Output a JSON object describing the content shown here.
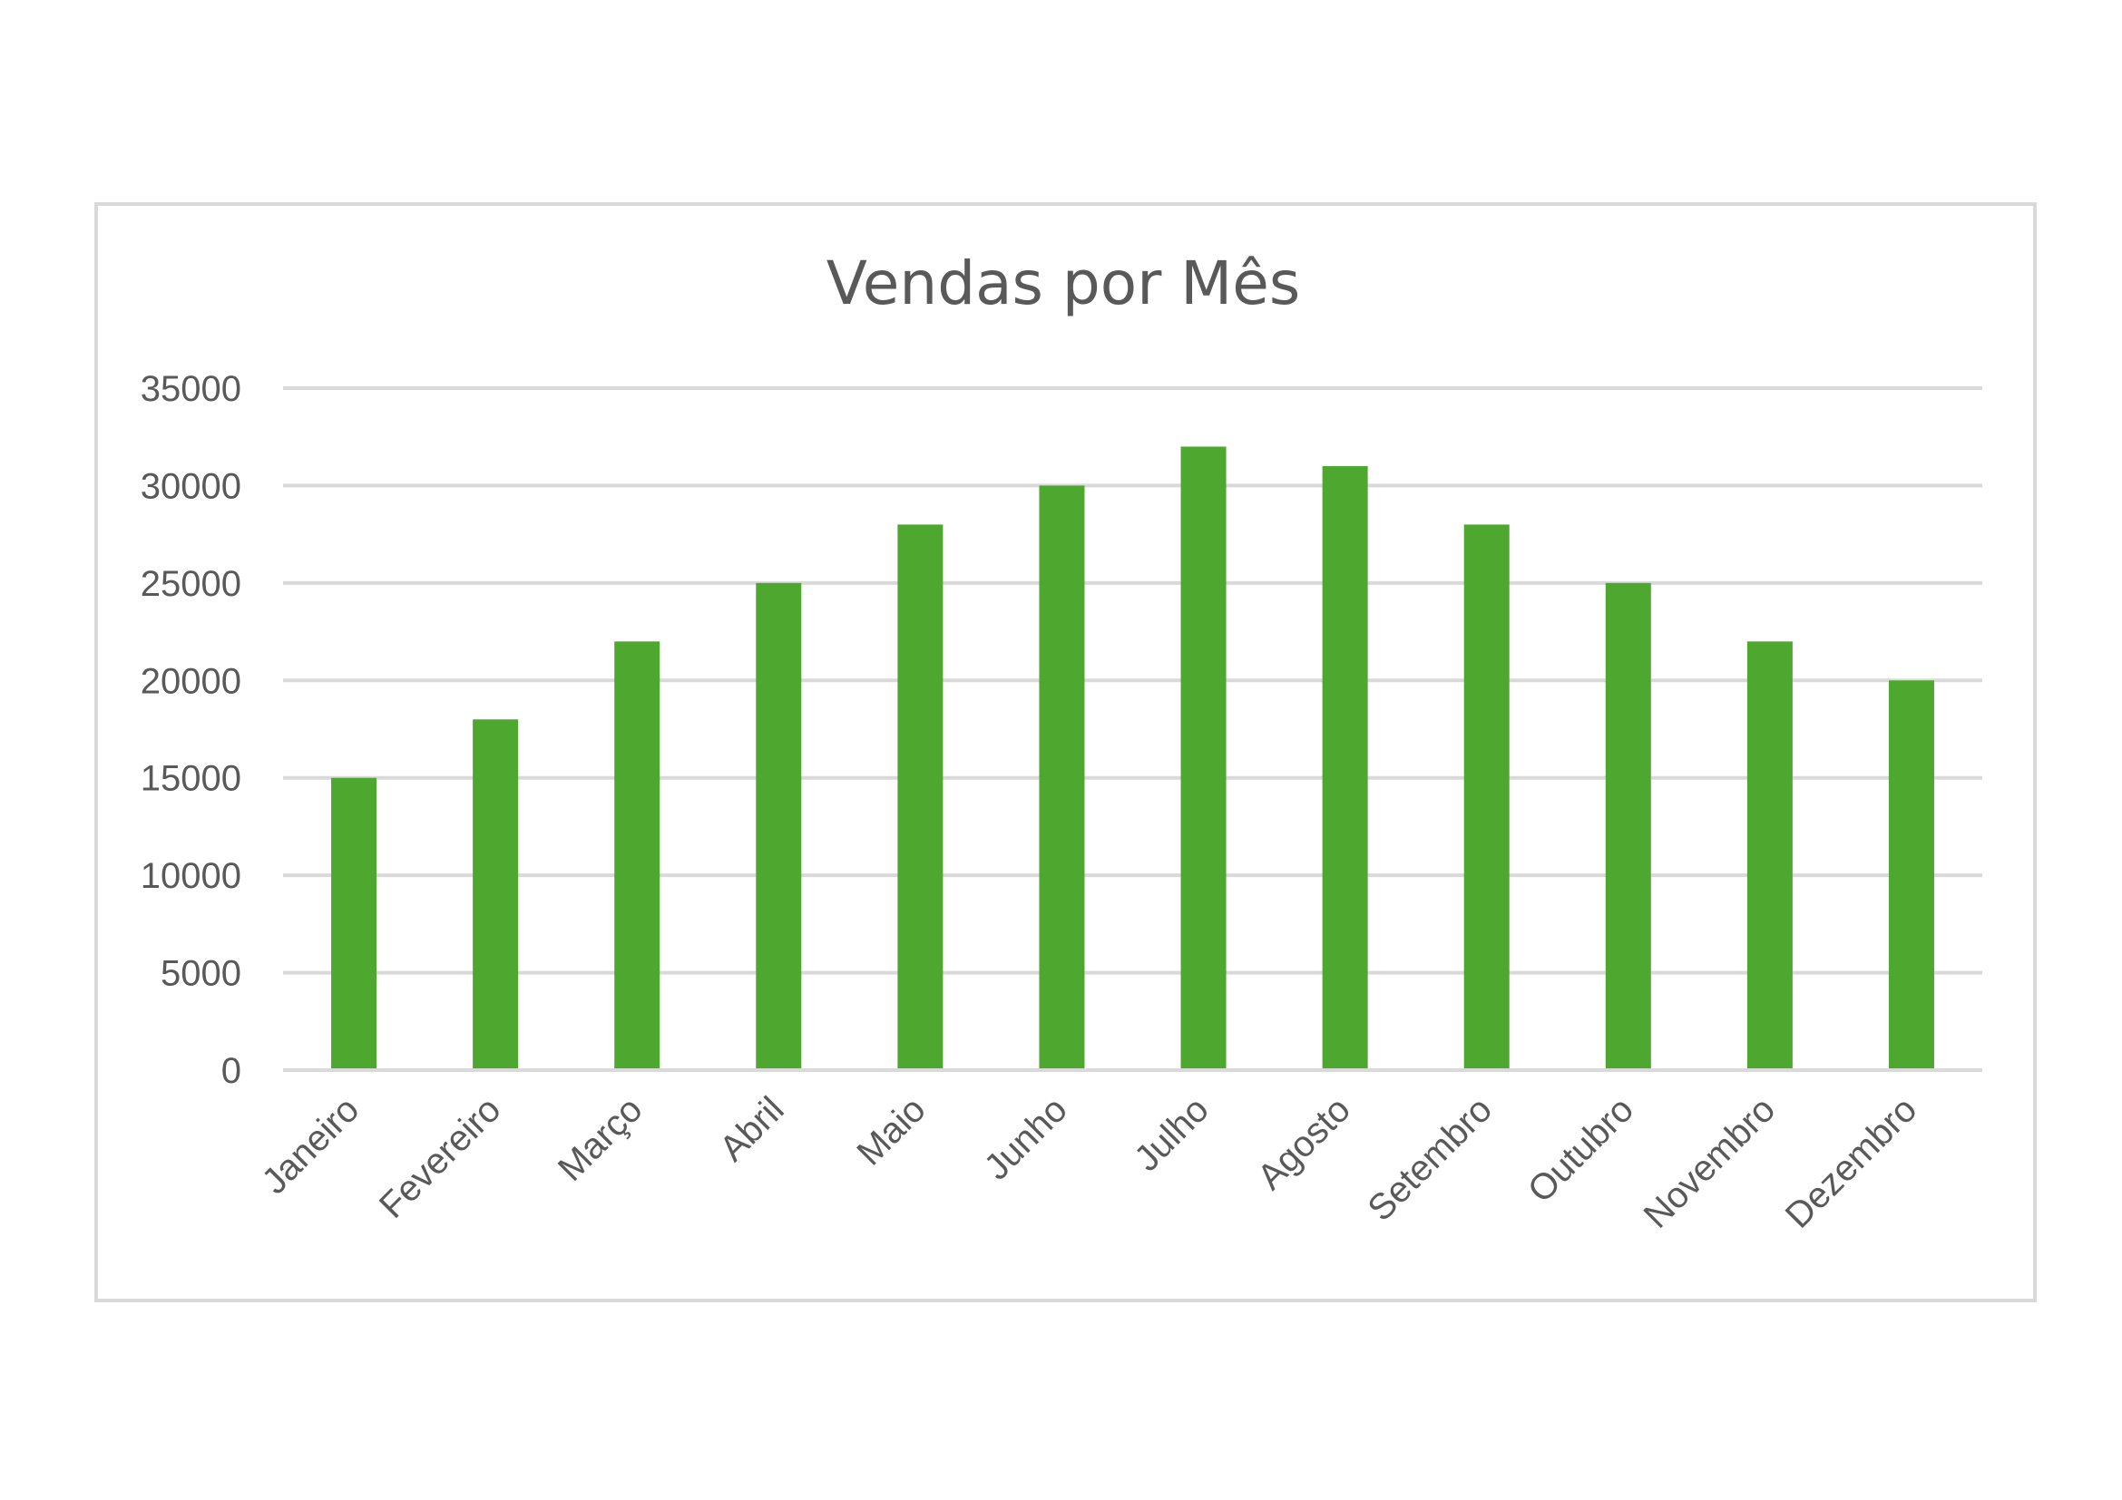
{
  "chart_data": {
    "type": "bar",
    "title": "Vendas por Mês",
    "xlabel": "",
    "ylabel": "",
    "categories": [
      "Janeiro",
      "Fevereiro",
      "Março",
      "Abril",
      "Maio",
      "Junho",
      "Julho",
      "Agosto",
      "Setembro",
      "Outubro",
      "Novembro",
      "Dezembro"
    ],
    "values": [
      15000,
      18000,
      22000,
      25000,
      28000,
      30000,
      32000,
      31000,
      28000,
      25000,
      22000,
      20000
    ],
    "ylim": [
      0,
      35000
    ],
    "yticks": [
      0,
      5000,
      10000,
      15000,
      20000,
      25000,
      30000,
      35000
    ],
    "grid": true,
    "legend": "none",
    "bar_color": "#4ea72e",
    "grid_color": "#d9d9d9",
    "text_color": "#595959"
  }
}
